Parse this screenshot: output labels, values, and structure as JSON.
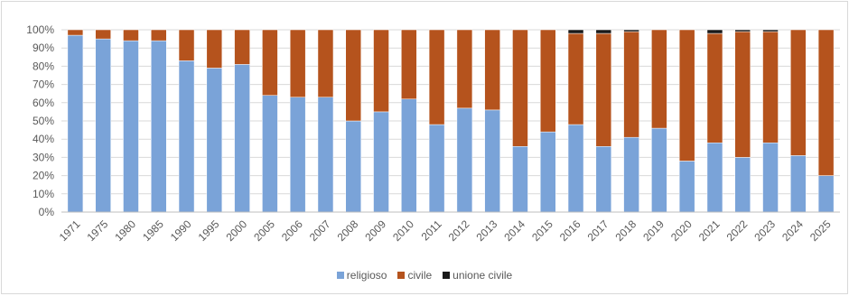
{
  "chart_data": {
    "type": "bar",
    "stacked": true,
    "percent": true,
    "categories": [
      "1971",
      "1975",
      "1980",
      "1985",
      "1990",
      "1995",
      "2000",
      "2005",
      "2006",
      "2007",
      "2008",
      "2009",
      "2010",
      "2011",
      "2012",
      "2013",
      "2014",
      "2015",
      "2016",
      "2017",
      "2018",
      "2019",
      "2020",
      "2021",
      "2022",
      "2023",
      "2024",
      "2025"
    ],
    "series": [
      {
        "name": "religioso",
        "color": "#7aa3d8",
        "values": [
          97,
          95,
          94,
          94,
          83,
          79,
          81,
          64,
          63,
          63,
          50,
          55,
          62,
          48,
          57,
          56,
          36,
          44,
          48,
          36,
          41,
          46,
          28,
          38,
          30,
          38,
          31,
          20
        ]
      },
      {
        "name": "civile",
        "color": "#b5531d",
        "values": [
          3,
          5,
          6,
          6,
          17,
          21,
          19,
          36,
          37,
          37,
          50,
          45,
          38,
          52,
          43,
          44,
          64,
          56,
          50,
          62,
          58,
          54,
          72,
          60,
          69,
          61,
          69,
          80
        ]
      },
      {
        "name": "unione civile",
        "color": "#1a1a1a",
        "values": [
          0,
          0,
          0,
          0,
          0,
          0,
          0,
          0,
          0,
          0,
          0,
          0,
          0,
          0,
          0,
          0,
          0,
          0,
          2,
          2,
          1,
          0,
          0,
          2,
          1,
          1,
          0,
          0
        ]
      }
    ],
    "yticks": [
      "0%",
      "10%",
      "20%",
      "30%",
      "40%",
      "50%",
      "60%",
      "70%",
      "80%",
      "90%",
      "100%"
    ],
    "ylim": [
      0,
      100
    ],
    "grid": true,
    "legend_position": "bottom"
  }
}
